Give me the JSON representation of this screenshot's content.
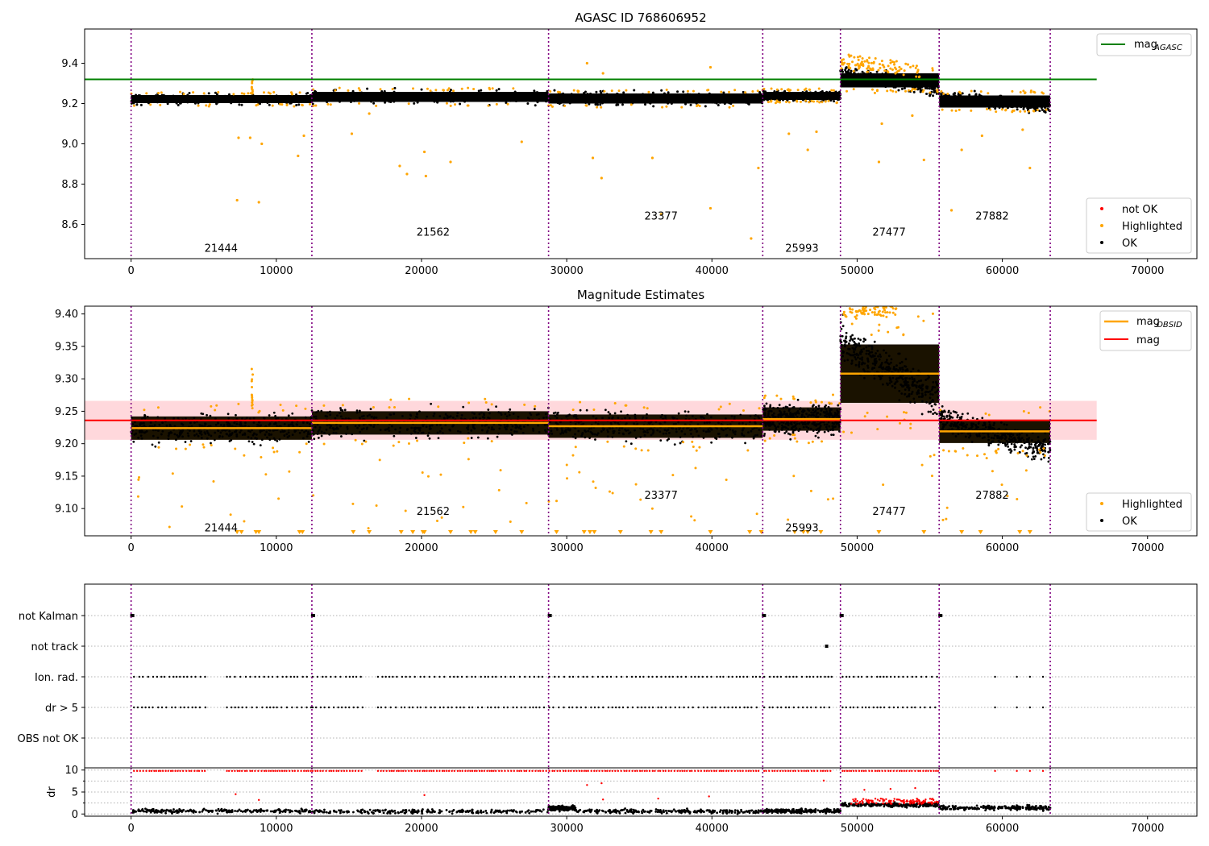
{
  "figure": {
    "title1": "AGASC ID 768606952",
    "title2": "Magnitude Estimates"
  },
  "obs_boundaries": [
    0,
    12450,
    28750,
    43500,
    48850,
    55650,
    63300
  ],
  "chart_data": [
    {
      "id": "top",
      "type": "scatter",
      "title": "AGASC ID 768606952",
      "xlim": [
        -3200,
        73400
      ],
      "ylim": [
        8.43,
        9.57
      ],
      "xticks": [
        0,
        10000,
        20000,
        30000,
        40000,
        50000,
        60000,
        70000
      ],
      "yticks": [
        8.6,
        8.8,
        9.0,
        9.2,
        9.4
      ],
      "yticklabels": [
        "8.6",
        "8.8",
        "9.0",
        "9.2",
        "9.4"
      ],
      "mag_agasc": 9.32,
      "hline_xrange": [
        -3200,
        66500
      ],
      "segments": [
        {
          "x0": 0,
          "x1": 12450,
          "center": 9.222,
          "spread": 0.02,
          "label": "21444",
          "label_x": 6200,
          "label_y": 8.48
        },
        {
          "x0": 12450,
          "x1": 28750,
          "center": 9.233,
          "spread": 0.025,
          "label": "21562",
          "label_x": 20800,
          "label_y": 8.56
        },
        {
          "x0": 28750,
          "x1": 43500,
          "center": 9.225,
          "spread": 0.025,
          "label": "23377",
          "label_x": 36500,
          "label_y": 8.64
        },
        {
          "x0": 43500,
          "x1": 48850,
          "center": 9.238,
          "spread": 0.02,
          "label": "25993",
          "label_x": 46200,
          "label_y": 8.48
        },
        {
          "x0": 48850,
          "x1": 55650,
          "center": 9.315,
          "spread": 0.035,
          "label": "27477",
          "label_x": 52200,
          "label_y": 8.56
        },
        {
          "x0": 55650,
          "x1": 63300,
          "center": 9.21,
          "spread": 0.03,
          "label": "27882",
          "label_x": 59300,
          "label_y": 8.64
        }
      ],
      "highlighted_outliers": [
        [
          7300,
          8.72
        ],
        [
          8800,
          8.71
        ],
        [
          7400,
          9.03
        ],
        [
          8200,
          9.03
        ],
        [
          9000,
          9.0
        ],
        [
          11500,
          8.94
        ],
        [
          11900,
          9.04
        ],
        [
          18500,
          8.89
        ],
        [
          19000,
          8.85
        ],
        [
          20200,
          8.96
        ],
        [
          20300,
          8.84
        ],
        [
          22000,
          8.91
        ],
        [
          16400,
          9.15
        ],
        [
          15200,
          9.05
        ],
        [
          26900,
          9.01
        ],
        [
          31400,
          9.4
        ],
        [
          32500,
          9.35
        ],
        [
          31800,
          8.93
        ],
        [
          32400,
          8.83
        ],
        [
          35900,
          8.93
        ],
        [
          36500,
          8.65
        ],
        [
          39900,
          8.68
        ],
        [
          39900,
          9.38
        ],
        [
          42700,
          8.53
        ],
        [
          43200,
          8.88
        ],
        [
          46600,
          8.97
        ],
        [
          45300,
          9.05
        ],
        [
          47200,
          9.06
        ],
        [
          51500,
          8.91
        ],
        [
          51700,
          9.1
        ],
        [
          54600,
          8.92
        ],
        [
          53800,
          9.14
        ],
        [
          56500,
          8.67
        ],
        [
          57200,
          8.97
        ],
        [
          58600,
          9.04
        ],
        [
          61400,
          9.07
        ],
        [
          61900,
          8.88
        ]
      ],
      "legend_top": [
        "mag_AGASC"
      ],
      "legend_bottom": [
        "not OK",
        "Highlighted",
        "OK"
      ]
    },
    {
      "id": "middle",
      "type": "scatter",
      "title": "Magnitude Estimates",
      "xlim": [
        -3200,
        73400
      ],
      "ylim": [
        9.058,
        9.412
      ],
      "xticks": [
        0,
        10000,
        20000,
        30000,
        40000,
        50000,
        60000,
        70000
      ],
      "yticks": [
        9.1,
        9.15,
        9.2,
        9.25,
        9.3,
        9.35,
        9.4
      ],
      "yticklabels": [
        "9.10",
        "9.15",
        "9.20",
        "9.25",
        "9.30",
        "9.35",
        "9.40"
      ],
      "mag": 9.236,
      "mag_band": [
        9.206,
        9.266
      ],
      "mag_obsid": [
        {
          "x0": 0,
          "x1": 12450,
          "value": 9.224
        },
        {
          "x0": 12450,
          "x1": 28750,
          "value": 9.232
        },
        {
          "x0": 28750,
          "x1": 43500,
          "value": 9.227
        },
        {
          "x0": 43500,
          "x1": 48850,
          "value": 9.238
        },
        {
          "x0": 48850,
          "x1": 55650,
          "value": 9.308
        },
        {
          "x0": 55650,
          "x1": 63300,
          "value": 9.219
        }
      ],
      "segment_labels": [
        {
          "label": "21444",
          "x": 6200,
          "y": 9.07
        },
        {
          "label": "21562",
          "x": 20800,
          "y": 9.095
        },
        {
          "label": "23377",
          "x": 36500,
          "y": 9.12
        },
        {
          "label": "25993",
          "x": 46200,
          "y": 9.07
        },
        {
          "label": "27477",
          "x": 52200,
          "y": 9.095
        },
        {
          "label": "27882",
          "x": 59300,
          "y": 9.12
        }
      ],
      "legend_top": [
        "mag_OBSID",
        "mag"
      ],
      "legend_bottom": [
        "Highlighted",
        "OK"
      ]
    },
    {
      "id": "flags",
      "type": "scatter",
      "xlim": [
        -3200,
        73400
      ],
      "categories": [
        "not Kalman",
        "not track",
        "Ion. rad.",
        "dr > 5",
        "OBS not OK"
      ]
    },
    {
      "id": "dr",
      "type": "scatter",
      "ylabel": "dr",
      "xlim": [
        -3200,
        73400
      ],
      "ylim": [
        -0.5,
        10.5
      ],
      "xticks": [
        0,
        10000,
        20000,
        30000,
        40000,
        50000,
        60000,
        70000
      ],
      "yticks": [
        0,
        5,
        10
      ],
      "yticklabels": [
        "0",
        "5",
        "10"
      ]
    }
  ],
  "xticklabels": [
    "0",
    "10000",
    "20000",
    "30000",
    "40000",
    "50000",
    "60000",
    "70000"
  ],
  "legend": {
    "mag_agasc_main": "mag",
    "mag_agasc_sub": "AGASC",
    "mag_obsid_main": "mag",
    "mag_obsid_sub": "OBSID",
    "mag": "mag",
    "not_ok": "not OK",
    "highlighted": "Highlighted",
    "ok": "OK"
  },
  "colors": {
    "agasc_line": "#008000",
    "mag_line": "#ff0000",
    "mag_band": "#ffd8dc",
    "mag_obsid_line": "#ffa500",
    "highlighted": "#ffa500",
    "not_ok": "#ff0000",
    "ok": "#000000",
    "boundary": "#800080"
  }
}
